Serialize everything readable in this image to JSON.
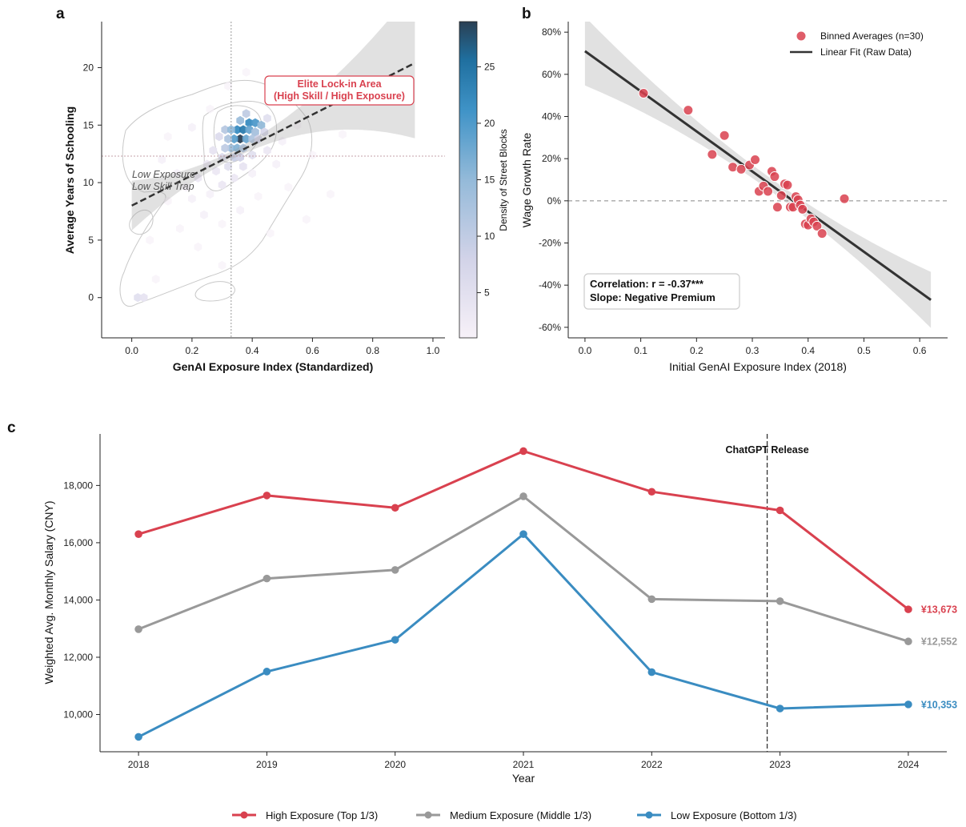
{
  "chart_data": [
    {
      "panel": "a",
      "type": "heatmap",
      "xlabel": "GenAI Exposure Index (Standardized)",
      "ylabel": "Average Years of Schooling",
      "xlim": [
        -0.1,
        1.04
      ],
      "ylim": [
        -3.5,
        24
      ],
      "xticks": [
        "0.0",
        "0.2",
        "0.4",
        "0.6",
        "0.8",
        "1.0"
      ],
      "xtick_values": [
        0,
        0.2,
        0.4,
        0.6,
        0.8,
        1.0
      ],
      "yticks": [
        "0",
        "5",
        "10",
        "15",
        "20"
      ],
      "ytick_values": [
        0,
        5,
        10,
        15,
        20
      ],
      "colorbar_label": "Density of Street Blocks",
      "colorbar_range": [
        1,
        29
      ],
      "colorbar_ticks": [
        "5",
        "10",
        "15",
        "20",
        "25"
      ],
      "colorbar_tick_values": [
        5,
        10,
        15,
        20,
        25
      ],
      "fit_line": {
        "x": [
          0,
          0.94
        ],
        "y": [
          8.0,
          20.4
        ]
      },
      "mean_lines": {
        "x": 0.33,
        "y": 12.3
      },
      "annotations": {
        "elite": "Elite Lock-in Area\n(High Skill / High Exposure)",
        "trap": "Low Exposure\nLow Skill Trap"
      },
      "hex_density": [
        {
          "x": 0.36,
          "y": 13.8,
          "d": 29
        },
        {
          "x": 0.35,
          "y": 14.6,
          "d": 22
        },
        {
          "x": 0.37,
          "y": 14.6,
          "d": 24
        },
        {
          "x": 0.39,
          "y": 15.2,
          "d": 22
        },
        {
          "x": 0.41,
          "y": 15.2,
          "d": 20
        },
        {
          "x": 0.43,
          "y": 15.0,
          "d": 15
        },
        {
          "x": 0.38,
          "y": 13.8,
          "d": 18
        },
        {
          "x": 0.34,
          "y": 13.8,
          "d": 19
        },
        {
          "x": 0.33,
          "y": 13.0,
          "d": 14
        },
        {
          "x": 0.35,
          "y": 13.0,
          "d": 16
        },
        {
          "x": 0.37,
          "y": 13.0,
          "d": 12
        },
        {
          "x": 0.31,
          "y": 14.6,
          "d": 11
        },
        {
          "x": 0.33,
          "y": 14.6,
          "d": 15
        },
        {
          "x": 0.39,
          "y": 14.6,
          "d": 18
        },
        {
          "x": 0.41,
          "y": 14.4,
          "d": 13
        },
        {
          "x": 0.4,
          "y": 13.8,
          "d": 12
        },
        {
          "x": 0.31,
          "y": 13.0,
          "d": 10
        },
        {
          "x": 0.32,
          "y": 13.8,
          "d": 12
        },
        {
          "x": 0.36,
          "y": 15.4,
          "d": 14
        },
        {
          "x": 0.38,
          "y": 16.0,
          "d": 10
        },
        {
          "x": 0.34,
          "y": 12.2,
          "d": 9
        },
        {
          "x": 0.36,
          "y": 12.2,
          "d": 8
        },
        {
          "x": 0.3,
          "y": 12.2,
          "d": 6
        },
        {
          "x": 0.42,
          "y": 13.8,
          "d": 8
        },
        {
          "x": 0.29,
          "y": 14.0,
          "d": 6
        },
        {
          "x": 0.44,
          "y": 14.4,
          "d": 7
        },
        {
          "x": 0.32,
          "y": 11.4,
          "d": 5
        },
        {
          "x": 0.37,
          "y": 11.4,
          "d": 4
        },
        {
          "x": 0.27,
          "y": 12.8,
          "d": 4
        },
        {
          "x": 0.45,
          "y": 15.6,
          "d": 5
        },
        {
          "x": 0.28,
          "y": 11.0,
          "d": 3
        },
        {
          "x": 0.25,
          "y": 11.6,
          "d": 3
        },
        {
          "x": 0.4,
          "y": 12.4,
          "d": 5
        },
        {
          "x": 0.22,
          "y": 10.4,
          "d": 3
        },
        {
          "x": 0.18,
          "y": 9.6,
          "d": 2
        },
        {
          "x": 0.15,
          "y": 10.8,
          "d": 2
        },
        {
          "x": 0.2,
          "y": 8.6,
          "d": 2
        },
        {
          "x": 0.26,
          "y": 9.0,
          "d": 2
        },
        {
          "x": 0.3,
          "y": 9.8,
          "d": 3
        },
        {
          "x": 0.34,
          "y": 10.4,
          "d": 3
        },
        {
          "x": 0.4,
          "y": 10.8,
          "d": 2
        },
        {
          "x": 0.45,
          "y": 12.8,
          "d": 3
        },
        {
          "x": 0.5,
          "y": 13.6,
          "d": 2
        },
        {
          "x": 0.48,
          "y": 11.6,
          "d": 2
        },
        {
          "x": 0.24,
          "y": 7.2,
          "d": 2
        },
        {
          "x": 0.3,
          "y": 6.4,
          "d": 1
        },
        {
          "x": 0.36,
          "y": 7.6,
          "d": 2
        },
        {
          "x": 0.42,
          "y": 8.8,
          "d": 1
        },
        {
          "x": 0.16,
          "y": 6.0,
          "d": 1
        },
        {
          "x": 0.12,
          "y": 8.4,
          "d": 1
        },
        {
          "x": 0.1,
          "y": 12.0,
          "d": 2
        },
        {
          "x": 0.2,
          "y": 14.8,
          "d": 2
        },
        {
          "x": 0.26,
          "y": 16.4,
          "d": 1
        },
        {
          "x": 0.55,
          "y": 15.0,
          "d": 1
        },
        {
          "x": 0.6,
          "y": 12.4,
          "d": 1
        },
        {
          "x": 0.52,
          "y": 9.6,
          "d": 1
        },
        {
          "x": 0.02,
          "y": 0.0,
          "d": 5
        },
        {
          "x": 0.04,
          "y": 0.0,
          "d": 4
        },
        {
          "x": 0.08,
          "y": 1.6,
          "d": 1
        },
        {
          "x": 0.3,
          "y": 2.8,
          "d": 1
        },
        {
          "x": 0.22,
          "y": 4.4,
          "d": 1
        },
        {
          "x": 0.46,
          "y": 5.6,
          "d": 1
        },
        {
          "x": 0.32,
          "y": 18.4,
          "d": 1
        },
        {
          "x": 0.38,
          "y": 19.6,
          "d": 1
        },
        {
          "x": 0.66,
          "y": 9.0,
          "d": 1
        },
        {
          "x": 0.12,
          "y": 14.0,
          "d": 1
        },
        {
          "x": 0.06,
          "y": 5.0,
          "d": 1
        },
        {
          "x": 0.58,
          "y": 6.8,
          "d": 1
        },
        {
          "x": 0.7,
          "y": 14.2,
          "d": 1
        }
      ]
    },
    {
      "panel": "b",
      "type": "scatter",
      "xlabel": "Initial GenAI Exposure Index (2018)",
      "ylabel": "Wage Growth Rate",
      "xlim": [
        -0.03,
        0.65
      ],
      "ylim": [
        -0.65,
        0.85
      ],
      "xticks": [
        "0.0",
        "0.1",
        "0.2",
        "0.3",
        "0.4",
        "0.5",
        "0.6"
      ],
      "xtick_values": [
        0,
        0.1,
        0.2,
        0.3,
        0.4,
        0.5,
        0.6
      ],
      "yticks": [
        "-60%",
        "-40%",
        "-20%",
        "0%",
        "20%",
        "40%",
        "60%",
        "80%"
      ],
      "ytick_values": [
        -0.6,
        -0.4,
        -0.2,
        0,
        0.2,
        0.4,
        0.6,
        0.8
      ],
      "legend": {
        "placement": "top-right",
        "points": "Binned Averages (n=30)",
        "line": "Linear Fit (Raw Data)"
      },
      "stats": [
        "Correlation: r = -0.37***",
        "Slope: Negative Premium"
      ],
      "fit_line": {
        "x": [
          0.0,
          0.62
        ],
        "y": [
          0.71,
          -0.47
        ]
      },
      "points": [
        {
          "x": 0.105,
          "y": 0.51
        },
        {
          "x": 0.185,
          "y": 0.43
        },
        {
          "x": 0.228,
          "y": 0.22
        },
        {
          "x": 0.25,
          "y": 0.31
        },
        {
          "x": 0.265,
          "y": 0.16
        },
        {
          "x": 0.28,
          "y": 0.15
        },
        {
          "x": 0.295,
          "y": 0.17
        },
        {
          "x": 0.305,
          "y": 0.195
        },
        {
          "x": 0.312,
          "y": 0.045
        },
        {
          "x": 0.32,
          "y": 0.07
        },
        {
          "x": 0.328,
          "y": 0.045
        },
        {
          "x": 0.335,
          "y": 0.14
        },
        {
          "x": 0.34,
          "y": 0.115
        },
        {
          "x": 0.345,
          "y": -0.03
        },
        {
          "x": 0.352,
          "y": 0.025
        },
        {
          "x": 0.358,
          "y": 0.08
        },
        {
          "x": 0.363,
          "y": 0.075
        },
        {
          "x": 0.368,
          "y": -0.03
        },
        {
          "x": 0.373,
          "y": -0.03
        },
        {
          "x": 0.378,
          "y": 0.02
        },
        {
          "x": 0.382,
          "y": 0.005
        },
        {
          "x": 0.386,
          "y": -0.02
        },
        {
          "x": 0.39,
          "y": -0.04
        },
        {
          "x": 0.395,
          "y": -0.11
        },
        {
          "x": 0.4,
          "y": -0.115
        },
        {
          "x": 0.405,
          "y": -0.085
        },
        {
          "x": 0.41,
          "y": -0.1
        },
        {
          "x": 0.416,
          "y": -0.12
        },
        {
          "x": 0.425,
          "y": -0.155
        },
        {
          "x": 0.465,
          "y": 0.01
        }
      ]
    },
    {
      "panel": "c",
      "type": "line",
      "xlabel": "Year",
      "ylabel": "Weighted Avg. Monthly Salary (CNY)",
      "x": [
        2018,
        2019,
        2020,
        2021,
        2022,
        2023,
        2024
      ],
      "ylim": [
        8700,
        19800
      ],
      "yticks": [
        "10,000",
        "12,000",
        "14,000",
        "16,000",
        "18,000"
      ],
      "ytick_values": [
        10000,
        12000,
        14000,
        16000,
        18000
      ],
      "event": {
        "label": "ChatGPT Release",
        "x": 2022.9
      },
      "legend_placement": "bottom",
      "series": [
        {
          "name": "High Exposure (Top 1/3)",
          "color": "#d9414f",
          "values": [
            16300,
            17650,
            17220,
            19200,
            17780,
            17130,
            13673
          ],
          "end_label": "¥13,673"
        },
        {
          "name": "Medium Exposure (Middle 1/3)",
          "color": "#999999",
          "values": [
            12980,
            14750,
            15050,
            17620,
            14030,
            13960,
            12552
          ],
          "end_label": "¥12,552"
        },
        {
          "name": "Low Exposure (Bottom 1/3)",
          "color": "#3a8cc1",
          "values": [
            9220,
            11500,
            12610,
            16300,
            11480,
            10210,
            10353
          ],
          "end_label": "¥10,353"
        }
      ]
    }
  ],
  "panel_labels": [
    "a",
    "b",
    "c"
  ]
}
